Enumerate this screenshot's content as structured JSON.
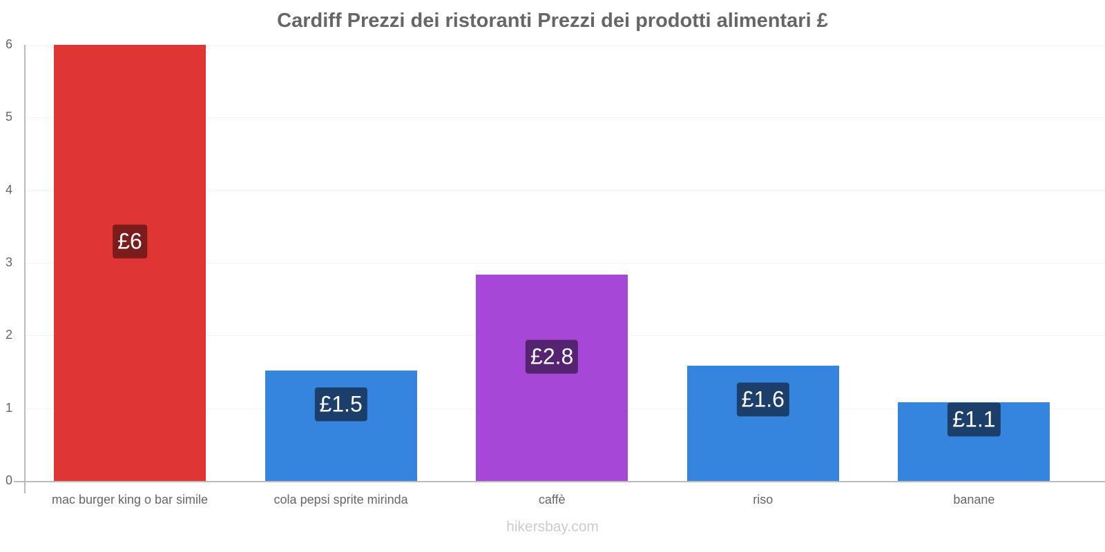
{
  "chart_data": {
    "type": "bar",
    "title": "Cardiff Prezzi dei ristoranti Prezzi dei prodotti alimentari £",
    "xlabel": "",
    "ylabel": "",
    "ylim": [
      0,
      6
    ],
    "yticks": [
      "0",
      "1",
      "2",
      "3",
      "4",
      "5",
      "6"
    ],
    "grid": true,
    "legend": null,
    "categories": [
      "mac burger king o bar simile",
      "cola pepsi sprite mirinda",
      "caffè",
      "riso",
      "banane"
    ],
    "values": [
      6.0,
      1.52,
      2.84,
      1.59,
      1.08
    ],
    "value_labels": [
      "£6",
      "£1.5",
      "£2.8",
      "£1.6",
      "£1.1"
    ],
    "bar_colors": [
      "#e03535",
      "#3584de",
      "#a647d8",
      "#3584de",
      "#3584de"
    ],
    "label_colors": [
      "#7a1c1c",
      "#1c3e6b",
      "#542470",
      "#1c3e6b",
      "#1c3e6b"
    ]
  },
  "footer": "hikersbay.com"
}
